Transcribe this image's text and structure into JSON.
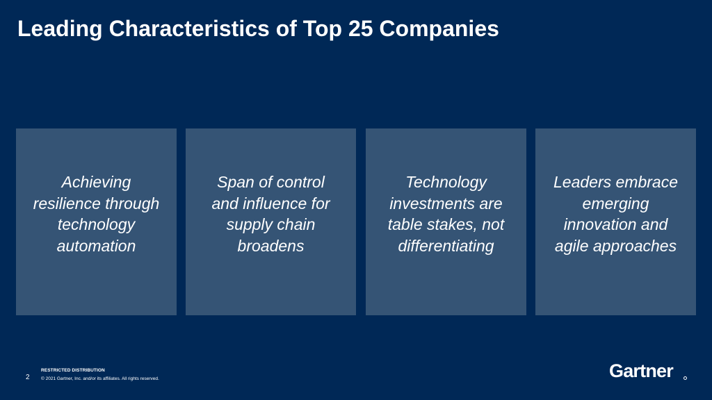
{
  "slide": {
    "title": "Leading Characteristics of Top 25 Companies",
    "cards": [
      {
        "text": "Achieving\nresilience through\ntechnology\nautomation"
      },
      {
        "text": "Span of control\nand influence for\nsupply chain\nbroadens"
      },
      {
        "text": "Technology\ninvestments are\ntable stakes, not\ndifferentiating"
      },
      {
        "text": "Leaders embrace\nemerging\ninnovation and\nagile approaches"
      }
    ]
  },
  "footer": {
    "restricted": "RESTRICTED DISTRIBUTION",
    "page_number": "2",
    "copyright": "© 2021 Gartner, Inc. and/or its affiliates. All rights reserved.",
    "logo_text": "Gartner"
  },
  "colors": {
    "background": "#002856",
    "card": "#355475",
    "text": "#ffffff"
  }
}
